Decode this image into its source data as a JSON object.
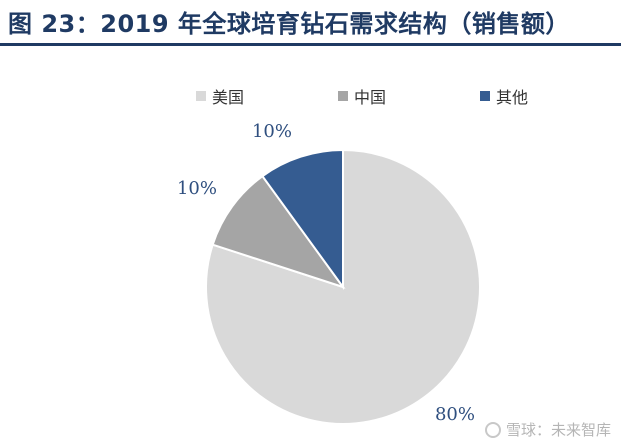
{
  "title": "图 23：2019 年全球培育钻石需求结构（销售额）",
  "watermark": "雪球：未来智库",
  "chart_data": {
    "type": "pie",
    "title": "",
    "legend_position": "top",
    "slices": [
      {
        "label": "美国",
        "value": 80,
        "label_text": "80%",
        "color": "#d9d9d9"
      },
      {
        "label": "中国",
        "value": 10,
        "label_text": "10%",
        "color": "#a5a5a5"
      },
      {
        "label": "其他",
        "value": 10,
        "label_text": "10%",
        "color": "#355c91"
      }
    ],
    "label_color": "#2f4f7f"
  }
}
